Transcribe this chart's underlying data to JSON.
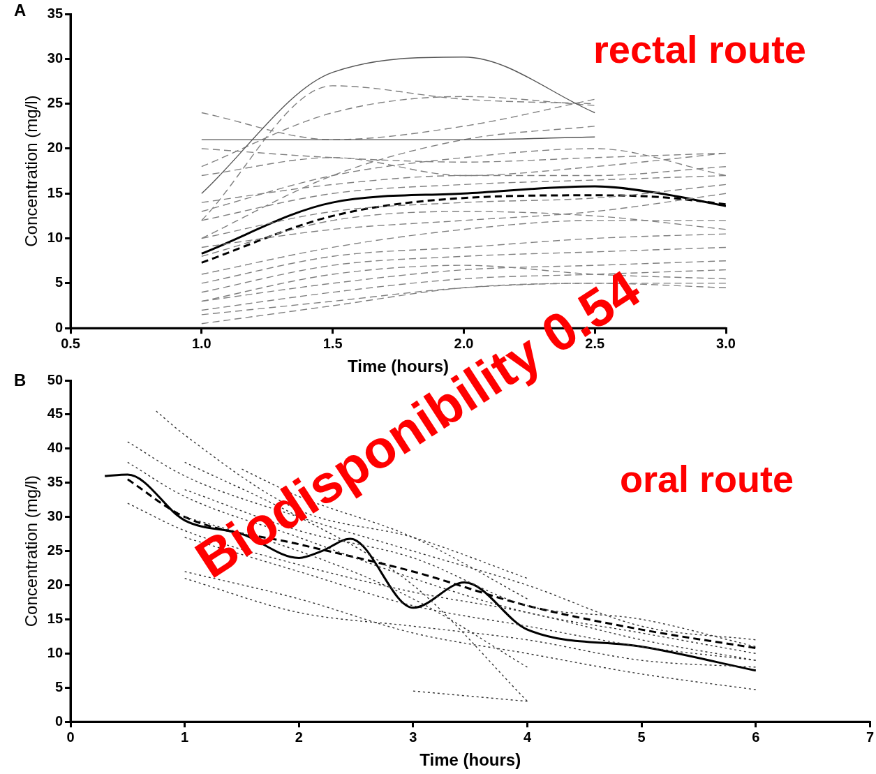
{
  "chart_data": [
    {
      "type": "line",
      "title": "A",
      "xlabel": "Time (hours)",
      "ylabel": "Concentration (mg/l)",
      "x": [
        1,
        1.5,
        2,
        2.5,
        3
      ],
      "xlim": [
        0.5,
        3
      ],
      "xticks": [
        {
          "value": 0.5,
          "label": "0.5"
        },
        {
          "value": 1,
          "label": "1.0"
        },
        {
          "value": 1.5,
          "label": "1.5"
        },
        {
          "value": 2,
          "label": "2.0"
        },
        {
          "value": 2.5,
          "label": "2.5"
        },
        {
          "value": 3,
          "label": "3.0"
        }
      ],
      "ylim": [
        0,
        35
      ],
      "yticks": [
        0,
        5,
        10,
        15,
        20,
        25,
        30,
        35
      ],
      "grid": false,
      "legend": false,
      "marker": "none",
      "annotations": [
        "rectal route"
      ],
      "series": [
        {
          "color": "#555555",
          "line_style": "solid",
          "values": [
            15,
            28.5,
            30.2,
            24,
            null
          ]
        },
        {
          "color": "#555555",
          "line_style": "solid",
          "values": [
            21,
            21,
            21,
            21.3,
            null
          ]
        },
        {
          "color": "#808080",
          "line_style": "dashed",
          "values": [
            24,
            21,
            22.5,
            25.5,
            null
          ]
        },
        {
          "color": "#808080",
          "line_style": "dashed",
          "values": [
            12,
            27,
            25.5,
            25,
            null
          ]
        },
        {
          "color": "#808080",
          "line_style": "dashed",
          "values": [
            18,
            24,
            25.8,
            24.8,
            null
          ]
        },
        {
          "color": "#808080",
          "line_style": "dashed",
          "values": [
            10,
            17,
            21,
            22.5,
            null
          ]
        },
        {
          "color": "#808080",
          "line_style": "dashed",
          "values": [
            20,
            19,
            18.5,
            19,
            19.5
          ]
        },
        {
          "color": "#808080",
          "line_style": "dashed",
          "values": [
            17,
            19,
            17,
            18,
            19.5
          ]
        },
        {
          "color": "#808080",
          "line_style": "dashed",
          "values": [
            14,
            16,
            17,
            17,
            18
          ]
        },
        {
          "color": "#808080",
          "line_style": "dashed",
          "values": [
            12,
            15,
            16,
            16.5,
            17
          ]
        },
        {
          "color": "#808080",
          "line_style": "dashed",
          "values": [
            10,
            13,
            14,
            14.5,
            16
          ]
        },
        {
          "color": "#808080",
          "line_style": "dashed",
          "values": [
            9,
            11,
            12,
            13,
            15
          ]
        },
        {
          "color": "#808080",
          "line_style": "dashed",
          "values": [
            6,
            9,
            11,
            12,
            12
          ]
        },
        {
          "color": "#808080",
          "line_style": "dashed",
          "values": [
            5,
            8,
            9,
            10,
            10.5
          ]
        },
        {
          "color": "#808080",
          "line_style": "dashed",
          "values": [
            4,
            7,
            8,
            8.5,
            9
          ]
        },
        {
          "color": "#808080",
          "line_style": "dashed",
          "values": [
            3,
            5,
            6.5,
            7,
            7.5
          ]
        },
        {
          "color": "#808080",
          "line_style": "dashed",
          "values": [
            2,
            4,
            5.5,
            6,
            6.5
          ]
        },
        {
          "color": "#808080",
          "line_style": "dashed",
          "values": [
            1.5,
            3,
            4.5,
            5,
            4.5
          ]
        },
        {
          "color": "#808080",
          "line_style": "dashed",
          "values": [
            0.5,
            2.5,
            4.5,
            5,
            5
          ]
        },
        {
          "color": "#808080",
          "line_style": "dashed",
          "values": [
            3,
            6,
            7,
            6,
            5.5
          ]
        },
        {
          "color": "#808080",
          "line_style": "dashed",
          "values": [
            13,
            17,
            19,
            20,
            17
          ]
        },
        {
          "color": "#808080",
          "line_style": "dashed",
          "values": [
            8,
            12,
            13,
            12.5,
            11
          ]
        },
        {
          "color": "#000000",
          "line_style": "solid",
          "x": [
            1,
            1.5,
            2,
            2.5,
            2.75,
            3
          ],
          "values": [
            8.3,
            14,
            15,
            15.8,
            15,
            13.6
          ]
        },
        {
          "color": "#000000",
          "line_style": "dashed",
          "x": [
            1,
            1.5,
            2,
            2.5,
            2.75,
            3
          ],
          "values": [
            7.3,
            12.5,
            14.5,
            14.8,
            14.6,
            13.8
          ]
        }
      ]
    },
    {
      "type": "line",
      "title": "B",
      "xlabel": "Time (hours)",
      "ylabel": "Concentration (mg/l)",
      "x": [
        0.5,
        1,
        2,
        3,
        4,
        5,
        6
      ],
      "xlim": [
        0,
        7
      ],
      "xticks": [
        0,
        1,
        2,
        3,
        4,
        5,
        6,
        7
      ],
      "ylim": [
        0,
        50
      ],
      "yticks": [
        0,
        5,
        10,
        15,
        20,
        25,
        30,
        35,
        40,
        45,
        50
      ],
      "grid": false,
      "legend": false,
      "marker": "none",
      "annotations": [
        "oral route",
        "Biodisponibility 0.54"
      ],
      "series": [
        {
          "color": "#333333",
          "line_style": "dotted",
          "x": [
            0.75,
            1,
            2,
            3,
            4
          ],
          "values": [
            45.5,
            42,
            31,
            27,
            21
          ]
        },
        {
          "color": "#333333",
          "line_style": "dotted",
          "values": [
            41,
            36,
            30,
            25,
            20,
            14,
            12
          ]
        },
        {
          "color": "#333333",
          "line_style": "dotted",
          "values": [
            32,
            28,
            23,
            19,
            16,
            12,
            9
          ]
        },
        {
          "color": "#333333",
          "line_style": "dotted",
          "x": [
            1,
            2,
            3,
            4,
            5,
            6
          ],
          "values": [
            21,
            16,
            14,
            12,
            9,
            8
          ]
        },
        {
          "color": "#333333",
          "line_style": "dotted",
          "x": [
            1,
            2,
            3,
            4,
            5,
            6
          ],
          "values": [
            22,
            18,
            13,
            10,
            7,
            4.7
          ]
        },
        {
          "color": "#333333",
          "line_style": "dotted",
          "x": [
            3,
            4
          ],
          "values": [
            4.5,
            3
          ]
        },
        {
          "color": "#333333",
          "line_style": "dotted",
          "x": [
            1,
            2,
            3,
            4
          ],
          "values": [
            38,
            30,
            20,
            3
          ]
        },
        {
          "color": "#333333",
          "line_style": "dotted",
          "x": [
            1,
            2,
            3,
            4,
            5,
            6
          ],
          "values": [
            34,
            28,
            24,
            17,
            15,
            11
          ]
        },
        {
          "color": "#333333",
          "line_style": "dotted",
          "x": [
            1,
            2,
            3,
            4
          ],
          "values": [
            30,
            25,
            18,
            8
          ]
        },
        {
          "color": "#333333",
          "line_style": "dotted",
          "values": [
            38,
            33,
            27,
            21,
            16,
            13,
            10
          ]
        },
        {
          "color": "#333333",
          "line_style": "dotted",
          "x": [
            1,
            2,
            3,
            4,
            5,
            6
          ],
          "values": [
            27,
            22,
            17,
            14,
            11,
            9
          ]
        },
        {
          "color": "#333333",
          "line_style": "dotted",
          "x": [
            1.5,
            2,
            3,
            4
          ],
          "values": [
            37,
            33,
            27,
            18
          ]
        },
        {
          "color": "#000000",
          "line_style": "solid",
          "x": [
            0.3,
            0.5,
            1,
            1.5,
            2,
            2.2,
            2.45,
            3,
            3.45,
            4,
            5,
            6
          ],
          "values": [
            36,
            36.2,
            29.5,
            27.5,
            24,
            25,
            26.8,
            16.7,
            20.4,
            13.5,
            11,
            7.5
          ]
        },
        {
          "color": "#000000",
          "line_style": "dashed",
          "values": [
            35.5,
            30,
            26,
            22,
            17,
            13.5,
            10.8
          ]
        }
      ]
    }
  ]
}
